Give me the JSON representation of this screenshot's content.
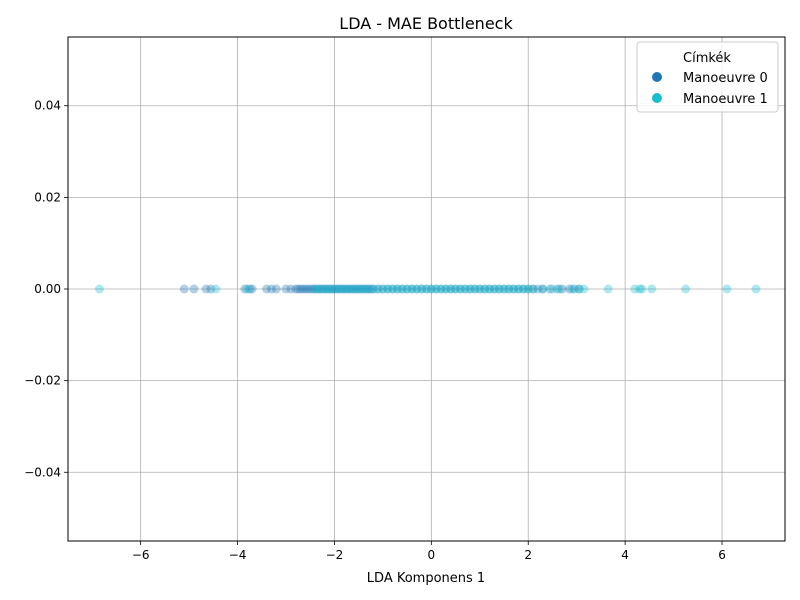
{
  "chart_data": {
    "type": "scatter",
    "title": "LDA - MAE Bottleneck",
    "xlabel": "LDA Komponens 1",
    "ylabel": "",
    "xlim": [
      -7.5,
      7.3
    ],
    "ylim": [
      -0.055,
      0.055
    ],
    "xticks": [
      -6,
      -4,
      -2,
      0,
      2,
      4,
      6
    ],
    "xtick_labels": [
      "−6",
      "−4",
      "−2",
      "0",
      "2",
      "4",
      "6"
    ],
    "yticks": [
      -0.04,
      -0.02,
      0.0,
      0.02,
      0.04
    ],
    "ytick_labels": [
      "−0.04",
      "−0.02",
      "0.00",
      "0.02",
      "0.04"
    ],
    "grid": true,
    "legend": {
      "title": "Címkék",
      "placement": "top-right"
    },
    "series": [
      {
        "name": "Manoeuvre 0",
        "color": "#1f77b4",
        "x": [
          -5.1,
          -4.9,
          -4.65,
          -4.55,
          -3.85,
          -3.75,
          -3.7,
          -3.4,
          -3.3,
          -3.2,
          -3.0,
          -2.9,
          -2.8,
          -2.75,
          -2.7,
          -2.65,
          -2.6,
          -2.55,
          -2.5,
          -2.45,
          -2.4,
          -2.35,
          -2.3,
          -2.25,
          -2.2,
          -2.15,
          -2.1,
          -2.05,
          -2.0,
          -1.95,
          -1.9,
          -1.85,
          -1.8,
          -1.75,
          -1.7,
          -1.65,
          -1.6,
          -1.55,
          -1.5,
          -1.45,
          -1.4,
          -1.35,
          -1.3,
          -1.25,
          -1.2,
          -1.1,
          -1.0,
          -0.9,
          -0.8,
          -0.7,
          -0.6,
          -0.5,
          -0.4,
          -0.3,
          -0.2,
          -0.1,
          0.0,
          0.1,
          0.2,
          0.3,
          0.4,
          0.5,
          0.6,
          0.7,
          0.8,
          0.9,
          1.0,
          1.1,
          1.2,
          1.3,
          1.4,
          1.5,
          1.6,
          1.7,
          1.8,
          1.9,
          2.0,
          2.1,
          2.2,
          2.3,
          2.45,
          2.6,
          2.7,
          2.85,
          2.95,
          3.05
        ],
        "y": [
          0,
          0,
          0,
          0,
          0,
          0,
          0,
          0,
          0,
          0,
          0,
          0,
          0,
          0,
          0,
          0,
          0,
          0,
          0,
          0,
          0,
          0,
          0,
          0,
          0,
          0,
          0,
          0,
          0,
          0,
          0,
          0,
          0,
          0,
          0,
          0,
          0,
          0,
          0,
          0,
          0,
          0,
          0,
          0,
          0,
          0,
          0,
          0,
          0,
          0,
          0,
          0,
          0,
          0,
          0,
          0,
          0,
          0,
          0,
          0,
          0,
          0,
          0,
          0,
          0,
          0,
          0,
          0,
          0,
          0,
          0,
          0,
          0,
          0,
          0,
          0,
          0,
          0,
          0,
          0,
          0,
          0,
          0,
          0,
          0,
          0
        ]
      },
      {
        "name": "Manoeuvre 1",
        "color": "#17becf",
        "x": [
          -6.85,
          -4.45,
          -3.8,
          -2.4,
          -2.3,
          -2.2,
          -2.1,
          -2.0,
          -1.9,
          -1.8,
          -1.7,
          -1.6,
          -1.5,
          -1.4,
          -1.3,
          -1.2,
          -1.1,
          -1.0,
          -0.9,
          -0.8,
          -0.7,
          -0.6,
          -0.5,
          -0.4,
          -0.3,
          -0.2,
          -0.1,
          0.0,
          0.1,
          0.2,
          0.3,
          0.4,
          0.5,
          0.6,
          0.7,
          0.8,
          0.9,
          1.0,
          1.1,
          1.2,
          1.3,
          1.4,
          1.5,
          1.6,
          1.7,
          1.8,
          1.9,
          2.0,
          2.1,
          2.3,
          2.5,
          2.65,
          2.9,
          3.05,
          3.15,
          3.65,
          4.2,
          4.3,
          4.35,
          4.55,
          5.25,
          6.1,
          6.7
        ],
        "y": [
          0,
          0,
          0,
          0,
          0,
          0,
          0,
          0,
          0,
          0,
          0,
          0,
          0,
          0,
          0,
          0,
          0,
          0,
          0,
          0,
          0,
          0,
          0,
          0,
          0,
          0,
          0,
          0,
          0,
          0,
          0,
          0,
          0,
          0,
          0,
          0,
          0,
          0,
          0,
          0,
          0,
          0,
          0,
          0,
          0,
          0,
          0,
          0,
          0,
          0,
          0,
          0,
          0,
          0,
          0,
          0,
          0,
          0,
          0,
          0,
          0,
          0,
          0
        ]
      }
    ]
  }
}
